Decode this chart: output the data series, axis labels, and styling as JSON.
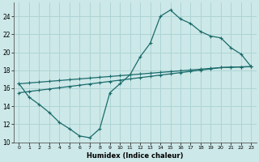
{
  "xlabel": "Humidex (Indice chaleur)",
  "bg_color": "#cde8e8",
  "grid_color": "#aed4d4",
  "line_color": "#1a6b6b",
  "xlim": [
    -0.5,
    23.5
  ],
  "ylim": [
    10,
    25.5
  ],
  "xticks": [
    0,
    1,
    2,
    3,
    4,
    5,
    6,
    7,
    8,
    9,
    10,
    11,
    12,
    13,
    14,
    15,
    16,
    17,
    18,
    19,
    20,
    21,
    22,
    23
  ],
  "yticks": [
    10,
    12,
    14,
    16,
    18,
    20,
    22,
    24
  ],
  "line1_x": [
    0,
    1,
    2,
    3,
    4,
    5,
    6,
    7,
    8,
    9,
    10,
    11,
    12,
    13,
    14,
    15,
    16,
    17,
    18,
    19,
    20,
    21,
    22,
    23
  ],
  "line1_y": [
    16.5,
    15.0,
    14.2,
    13.3,
    12.2,
    11.5,
    10.7,
    10.5,
    11.5,
    15.5,
    16.5,
    17.5,
    19.5,
    21.0,
    24.0,
    24.7,
    23.7,
    23.2,
    22.3,
    21.8,
    21.6,
    20.5,
    19.8,
    18.4
  ],
  "line2_x": [
    0,
    1,
    2,
    3,
    4,
    5,
    6,
    7,
    8,
    9,
    10,
    11,
    12,
    13,
    14,
    15,
    16,
    17,
    18,
    19,
    20,
    21,
    22,
    23
  ],
  "line2_y": [
    15.5,
    15.64,
    15.78,
    15.92,
    16.06,
    16.2,
    16.34,
    16.48,
    16.62,
    16.76,
    16.9,
    17.04,
    17.18,
    17.32,
    17.46,
    17.6,
    17.74,
    17.88,
    18.02,
    18.16,
    18.3,
    18.35,
    18.38,
    18.4
  ],
  "line3_x": [
    0,
    1,
    2,
    3,
    4,
    5,
    6,
    7,
    8,
    9,
    10,
    11,
    12,
    13,
    14,
    15,
    16,
    17,
    18,
    19,
    20,
    21,
    22,
    23
  ],
  "line3_y": [
    16.5,
    16.59,
    16.68,
    16.77,
    16.86,
    16.95,
    17.04,
    17.13,
    17.22,
    17.31,
    17.4,
    17.49,
    17.58,
    17.67,
    17.76,
    17.85,
    17.94,
    18.03,
    18.12,
    18.21,
    18.3,
    18.34,
    18.37,
    18.4
  ]
}
